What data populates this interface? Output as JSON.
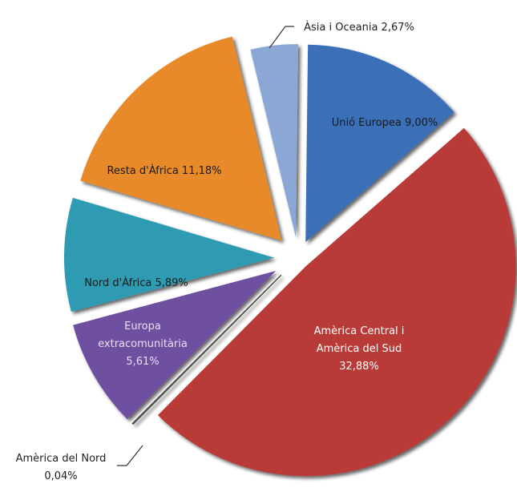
{
  "chart_data": {
    "type": "pie",
    "title": "",
    "unit": "%",
    "exploded": true,
    "shadow": true,
    "slices": [
      {
        "name": "Unió Europea",
        "value": 9.0,
        "label": [
          "Unió Europea 9,00%"
        ],
        "color": "#3a6fb8",
        "text_color": "#1a1a1a",
        "label_position": "inside"
      },
      {
        "name": "Amèrica Central i Amèrica del Sud",
        "value": 32.88,
        "label": [
          "Amèrica Central i",
          "Amèrica del Sud",
          "32,88%"
        ],
        "color": "#b83a38",
        "text_color": "#ffffff",
        "label_position": "inside"
      },
      {
        "name": "Amèrica del Nord",
        "value": 0.04,
        "label": [
          "Amèrica del Nord",
          "0,04%"
        ],
        "color": "#4a4a4a",
        "text_color": "#222222",
        "label_position": "outside-bottom-left"
      },
      {
        "name": "Europa extracomunitària",
        "value": 5.61,
        "label": [
          "Europa",
          "extracomunitària",
          "5,61%"
        ],
        "color": "#6e4fa0",
        "text_color": "#e8e0f4",
        "label_position": "inside"
      },
      {
        "name": "Nord d'Àfrica",
        "value": 5.89,
        "label": [
          "Nord d'Àfrica 5,89%"
        ],
        "color": "#2f9bb3",
        "text_color": "#1a1a1a",
        "label_position": "inside"
      },
      {
        "name": "Resta d'Àfrica",
        "value": 11.18,
        "label": [
          "Resta d'Àfrica 11,18%"
        ],
        "color": "#e88a2a",
        "text_color": "#1a1a1a",
        "label_position": "inside"
      },
      {
        "name": "Àsia i Oceania",
        "value": 2.67,
        "label": [
          "Àsia i Oceania 2,67%"
        ],
        "color": "#8ba7d6",
        "text_color": "#222222",
        "label_position": "outside-top"
      }
    ],
    "legend": "none"
  }
}
